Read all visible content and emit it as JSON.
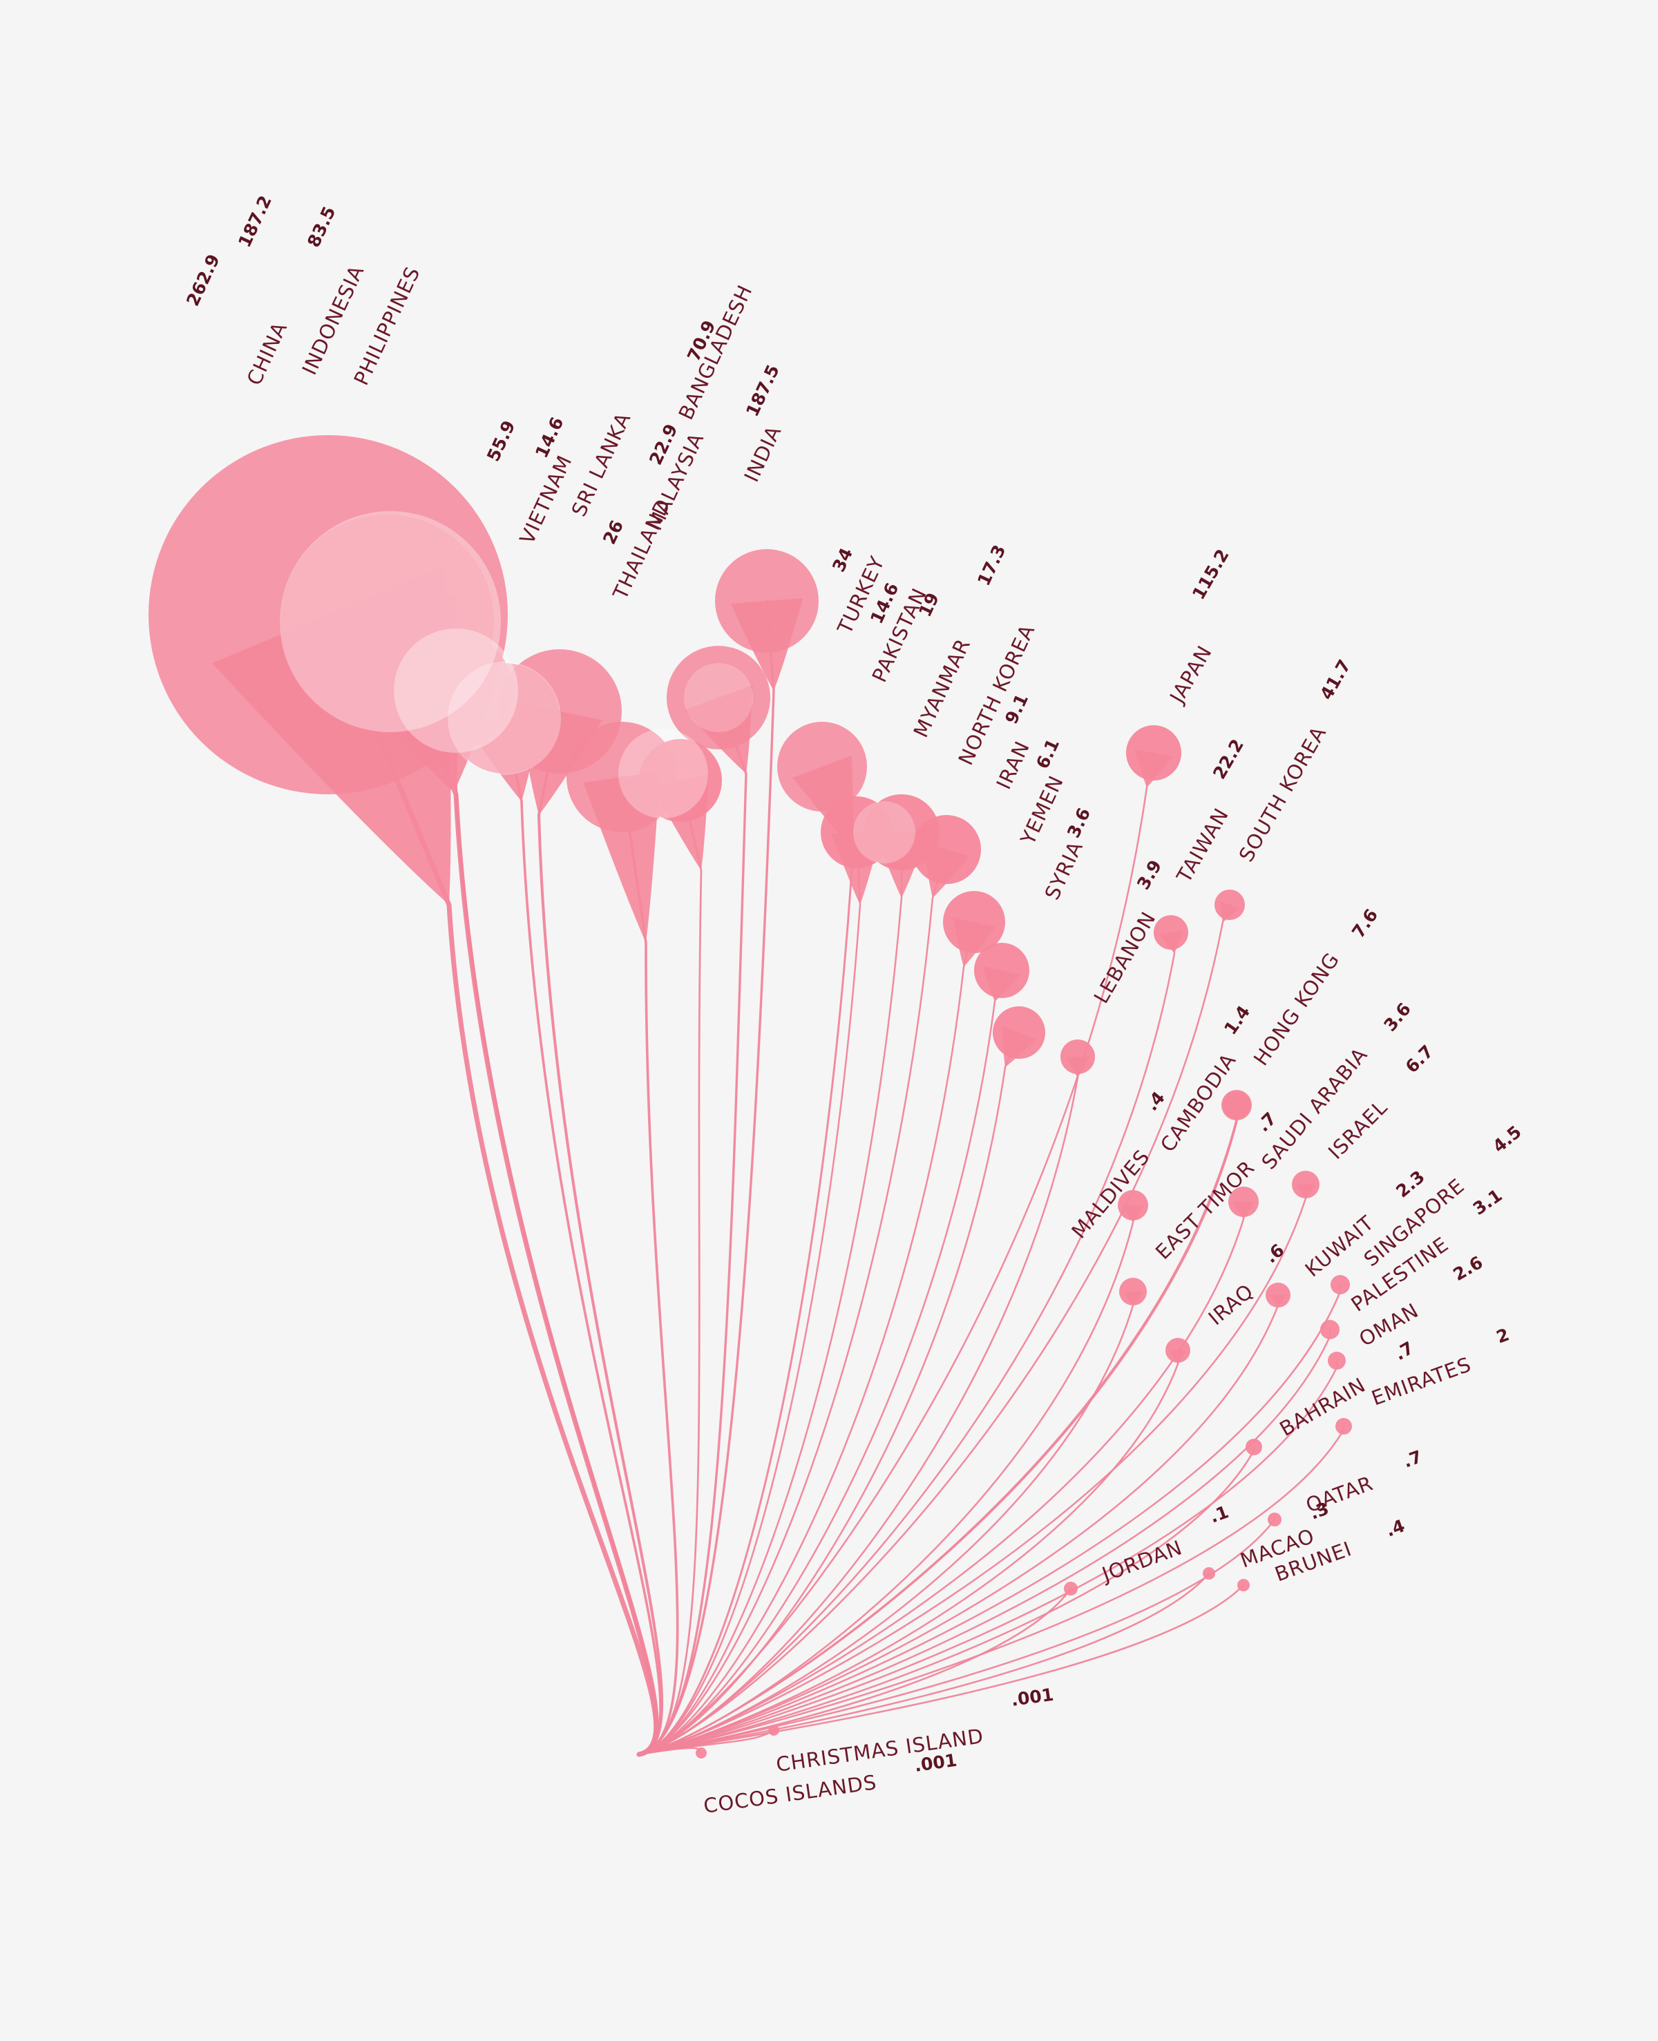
{
  "chart_data": {
    "type": "radial-lollipop",
    "title": "",
    "colors": {
      "stem": "#f0849a",
      "bubble": "#f5879b",
      "label": "#6b1828",
      "value": "#5c1422",
      "background": "#f5f5f5"
    },
    "items": [
      {
        "name": "CHINA",
        "value": "262.9",
        "value_num": 262.9
      },
      {
        "name": "INDONESIA",
        "value": "187.2",
        "value_num": 187.2
      },
      {
        "name": "PHILIPPINES",
        "value": "83.5",
        "value_num": 83.5
      },
      {
        "name": "VIETNAM",
        "value": "55.9",
        "value_num": 55.9
      },
      {
        "name": "SRI LANKA",
        "value": "14.6",
        "value_num": 14.6
      },
      {
        "name": "THAILAND",
        "value": "26",
        "value_num": 26
      },
      {
        "name": "MALAYSIA",
        "value": "22.9",
        "value_num": 22.9
      },
      {
        "name": "BANGLADESH",
        "value": "70.9",
        "value_num": 70.9
      },
      {
        "name": "INDIA",
        "value": "187.5",
        "value_num": 187.5
      },
      {
        "name": "TURKEY",
        "value": "34",
        "value_num": 34
      },
      {
        "name": "PAKISTAN",
        "value": "14.6",
        "value_num": 14.6
      },
      {
        "name": "MYANMAR",
        "value": "19",
        "value_num": 19
      },
      {
        "name": "NORTH KOREA",
        "value": "17.3",
        "value_num": 17.3
      },
      {
        "name": "IRAN",
        "value": "9.1",
        "value_num": 9.1
      },
      {
        "name": "YEMEN",
        "value": "6.1",
        "value_num": 6.1
      },
      {
        "name": "SYRIA",
        "value": "3.6",
        "value_num": 3.6
      },
      {
        "name": "LEBANON",
        "value": "3.9",
        "value_num": 3.9
      },
      {
        "name": "JAPAN",
        "value": "115.2",
        "value_num": 115.2
      },
      {
        "name": "TAIWAN",
        "value": "22.2",
        "value_num": 22.2
      },
      {
        "name": "SOUTH KOREA",
        "value": "41.7",
        "value_num": 41.7
      },
      {
        "name": "HONG KONG",
        "value": "7.6",
        "value_num": 7.6
      },
      {
        "name": "CAMBODIA",
        "value": "1.4",
        "value_num": 1.4
      },
      {
        "name": "MALDIVES",
        "value": ".4",
        "value_num": 0.4
      },
      {
        "name": "SAUDI ARABIA",
        "value": "3.6",
        "value_num": 3.6
      },
      {
        "name": "EAST TIMOR",
        "value": ".7",
        "value_num": 0.7
      },
      {
        "name": "ISRAEL",
        "value": "6.7",
        "value_num": 6.7
      },
      {
        "name": "IRAQ",
        "value": ".6",
        "value_num": 0.6
      },
      {
        "name": "KUWAIT",
        "value": "2.3",
        "value_num": 2.3
      },
      {
        "name": "SINGAPORE",
        "value": "4.5",
        "value_num": 4.5
      },
      {
        "name": "PALESTINE",
        "value": "3.1",
        "value_num": 3.1
      },
      {
        "name": "OMAN",
        "value": "2.6",
        "value_num": 2.6
      },
      {
        "name": "BAHRAIN",
        "value": ".7",
        "value_num": 0.7
      },
      {
        "name": "EMIRATES",
        "value": "2",
        "value_num": 2
      },
      {
        "name": "QATAR",
        "value": ".7",
        "value_num": 0.7
      },
      {
        "name": "JORDAN",
        "value": ".1",
        "value_num": 0.1
      },
      {
        "name": "MACAO",
        "value": ".3",
        "value_num": 0.3
      },
      {
        "name": "BRUNEI",
        "value": ".4",
        "value_num": 0.4
      },
      {
        "name": "CHRISTMAS ISLAND",
        "value": ".001",
        "value_num": 0.001
      },
      {
        "name": "COCOS ISLANDS",
        "value": ".001",
        "value_num": 0.001
      }
    ]
  }
}
